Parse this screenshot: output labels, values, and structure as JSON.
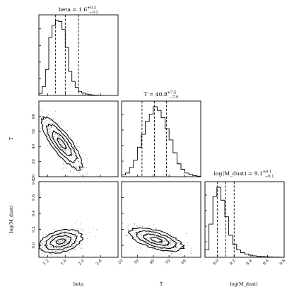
{
  "chart_data": {
    "type": "corner",
    "parameters": [
      "beta",
      "T",
      "log(M_dust)"
    ],
    "titles": [
      {
        "label": "beta",
        "median": "1.6",
        "plus": "0.3",
        "minus": "0.2"
      },
      {
        "label": "T",
        "median": "40.8",
        "plus": "7.5",
        "minus": "7.9"
      },
      {
        "label": "log(M_dust)",
        "median": "9.1",
        "plus": "0.1",
        "minus": "0.1"
      }
    ],
    "axes": {
      "beta": {
        "range": [
          1.0,
          2.8
        ],
        "ticks": [
          "1.2",
          "1.6",
          "2.0",
          "2.4"
        ],
        "tick_values": [
          1.2,
          1.6,
          2.0,
          2.4
        ]
      },
      "T": {
        "range": [
          20,
          70
        ],
        "ticks": [
          "20",
          "30",
          "40",
          "50",
          "60"
        ],
        "tick_values": [
          20,
          30,
          40,
          50,
          60
        ]
      },
      "log(M_dust)": {
        "range": [
          8.85,
          9.8
        ],
        "ticks": [
          "9.0",
          "9.2",
          "9.4",
          "9.6",
          "9.8"
        ],
        "tick_values": [
          9.0,
          9.2,
          9.4,
          9.6,
          9.8
        ]
      }
    },
    "xlabels": [
      "beta",
      "T",
      "log(M_dust)"
    ],
    "ylabels": [
      "",
      "T",
      "log(M_dust)"
    ],
    "histograms": {
      "beta": {
        "bin_start": 1.0,
        "bin_width": 0.075,
        "counts": [
          10,
          45,
          130,
          290,
          350,
          375,
          370,
          330,
          240,
          120,
          70,
          40,
          20,
          12,
          7,
          4,
          2,
          1,
          0,
          0
        ],
        "quantiles": [
          1.38,
          1.6,
          1.9
        ]
      },
      "T": {
        "bin_start": 20,
        "bin_width": 2.5,
        "counts": [
          10,
          20,
          50,
          90,
          160,
          230,
          300,
          340,
          380,
          360,
          320,
          260,
          200,
          130,
          70,
          40,
          20,
          12,
          6,
          3
        ],
        "quantiles": [
          32.9,
          40.8,
          48.3
        ]
      },
      "log(M_dust)": {
        "bin_start": 8.85,
        "bin_width": 0.0475,
        "counts": [
          40,
          180,
          330,
          380,
          310,
          220,
          120,
          70,
          40,
          25,
          18,
          12,
          8,
          6,
          4,
          3,
          2,
          1,
          1,
          0
        ],
        "quantiles": [
          9.0,
          9.1,
          9.2
        ]
      }
    },
    "contour_2d": [
      {
        "x": "beta",
        "y": "T",
        "center": [
          1.52,
          42
        ],
        "sigma": [
          0.22,
          8.0
        ],
        "rho": -0.82
      },
      {
        "x": "beta",
        "y": "log(M_dust)",
        "center": [
          1.5,
          9.05
        ],
        "sigma": [
          0.23,
          0.07
        ],
        "rho": 0.35
      },
      {
        "x": "T",
        "y": "log(M_dust)",
        "center": [
          42,
          9.07
        ],
        "sigma": [
          8.0,
          0.07
        ],
        "rho": -0.6
      }
    ],
    "grid": false,
    "legend": "none"
  }
}
